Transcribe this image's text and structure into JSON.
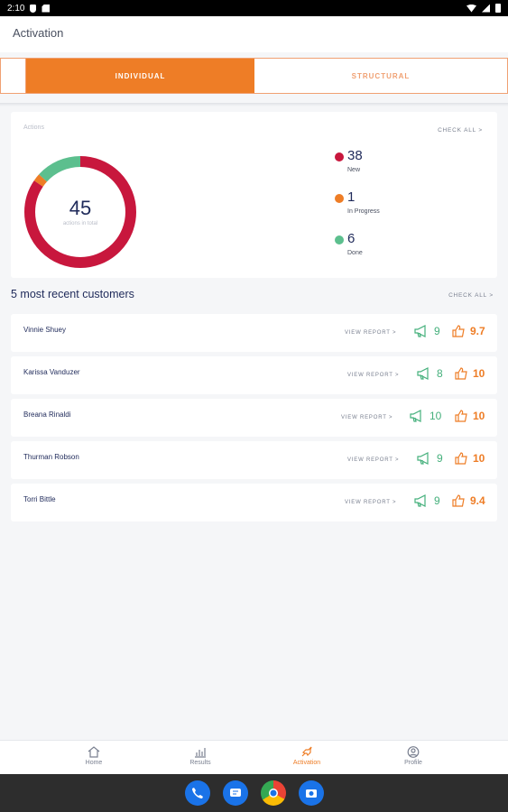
{
  "status": {
    "time": "2:10"
  },
  "appbar": {
    "title": "Activation"
  },
  "tabs": {
    "individual": "INDIVIDUAL",
    "structural": "STRUCTURAL"
  },
  "actions": {
    "label": "Actions",
    "check_all": "CHECK ALL >",
    "total": "45",
    "total_sub": "actions in total",
    "legend": [
      {
        "value": "38",
        "label": "New",
        "color": "#c8173d"
      },
      {
        "value": "1",
        "label": "In Progress",
        "color": "#ee7d26"
      },
      {
        "value": "6",
        "label": "Done",
        "color": "#5cbf8e"
      }
    ]
  },
  "customers": {
    "title": "5 most recent customers",
    "check_all": "CHECK ALL >",
    "view_report": "VIEW REPORT >",
    "rows": [
      {
        "name": "Vinnie Shuey",
        "nps": "9",
        "csat": "9.7"
      },
      {
        "name": "Karissa Vanduzer",
        "nps": "8",
        "csat": "10"
      },
      {
        "name": "Breana Rinaldi",
        "nps": "10",
        "csat": "10"
      },
      {
        "name": "Thurman Robson",
        "nps": "9",
        "csat": "10"
      },
      {
        "name": "Torri Bittle",
        "nps": "9",
        "csat": "9.4"
      }
    ]
  },
  "nav": {
    "home": "Home",
    "results": "Results",
    "activation": "Activation",
    "profile": "Profile"
  },
  "colors": {
    "accent": "#ee7d26",
    "navy": "#1f2a5a",
    "green": "#45b07c",
    "red": "#c8173d"
  }
}
